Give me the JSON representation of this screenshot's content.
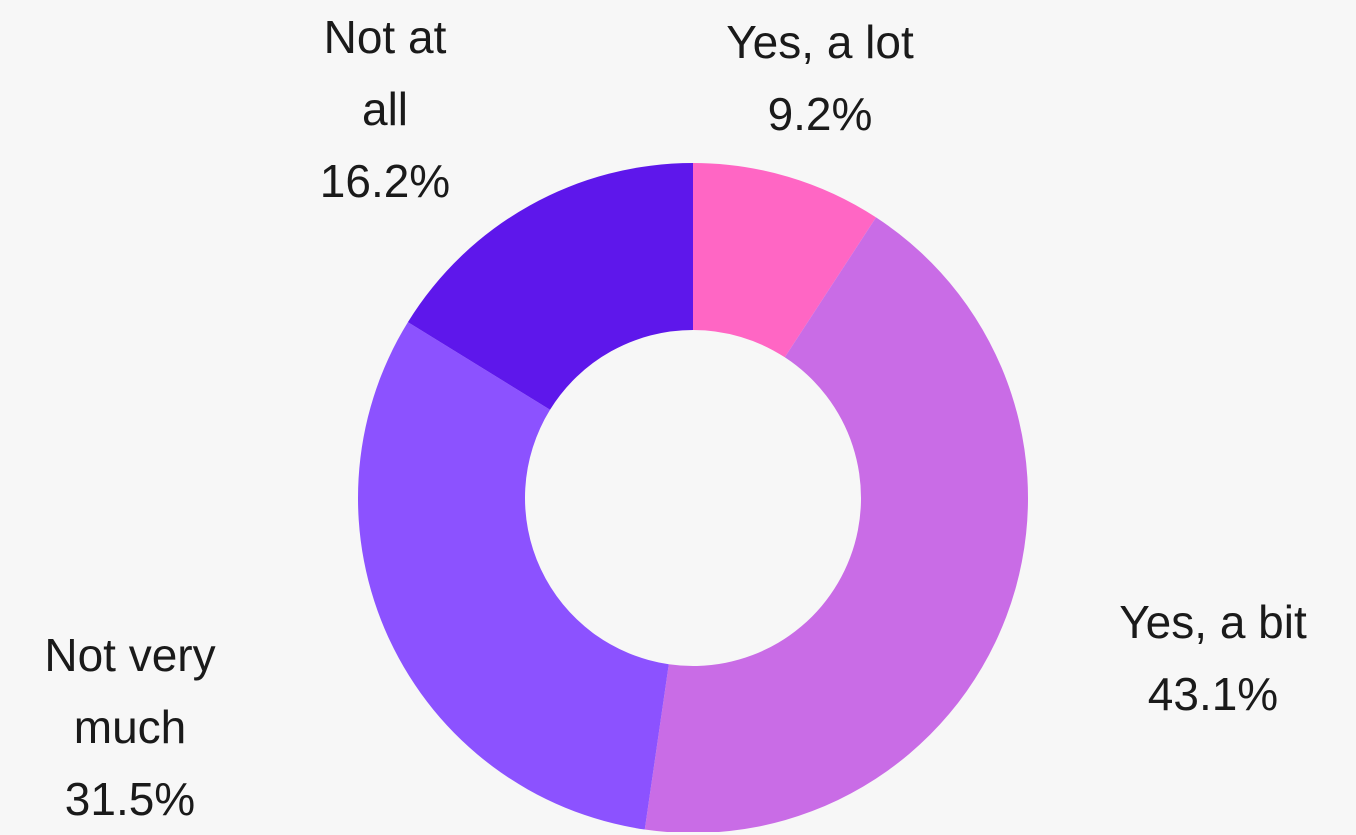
{
  "chart_data": {
    "type": "donut",
    "categories": [
      "Yes, a lot",
      "Yes, a bit",
      "Not very much",
      "Not at all"
    ],
    "values": [
      9.2,
      43.1,
      31.5,
      16.2
    ],
    "value_labels": [
      "9.2%",
      "43.1%",
      "31.5%",
      "16.2%"
    ],
    "colors": [
      "#ff66c4",
      "#c96ce6",
      "#8c52ff",
      "#5e17eb"
    ]
  }
}
